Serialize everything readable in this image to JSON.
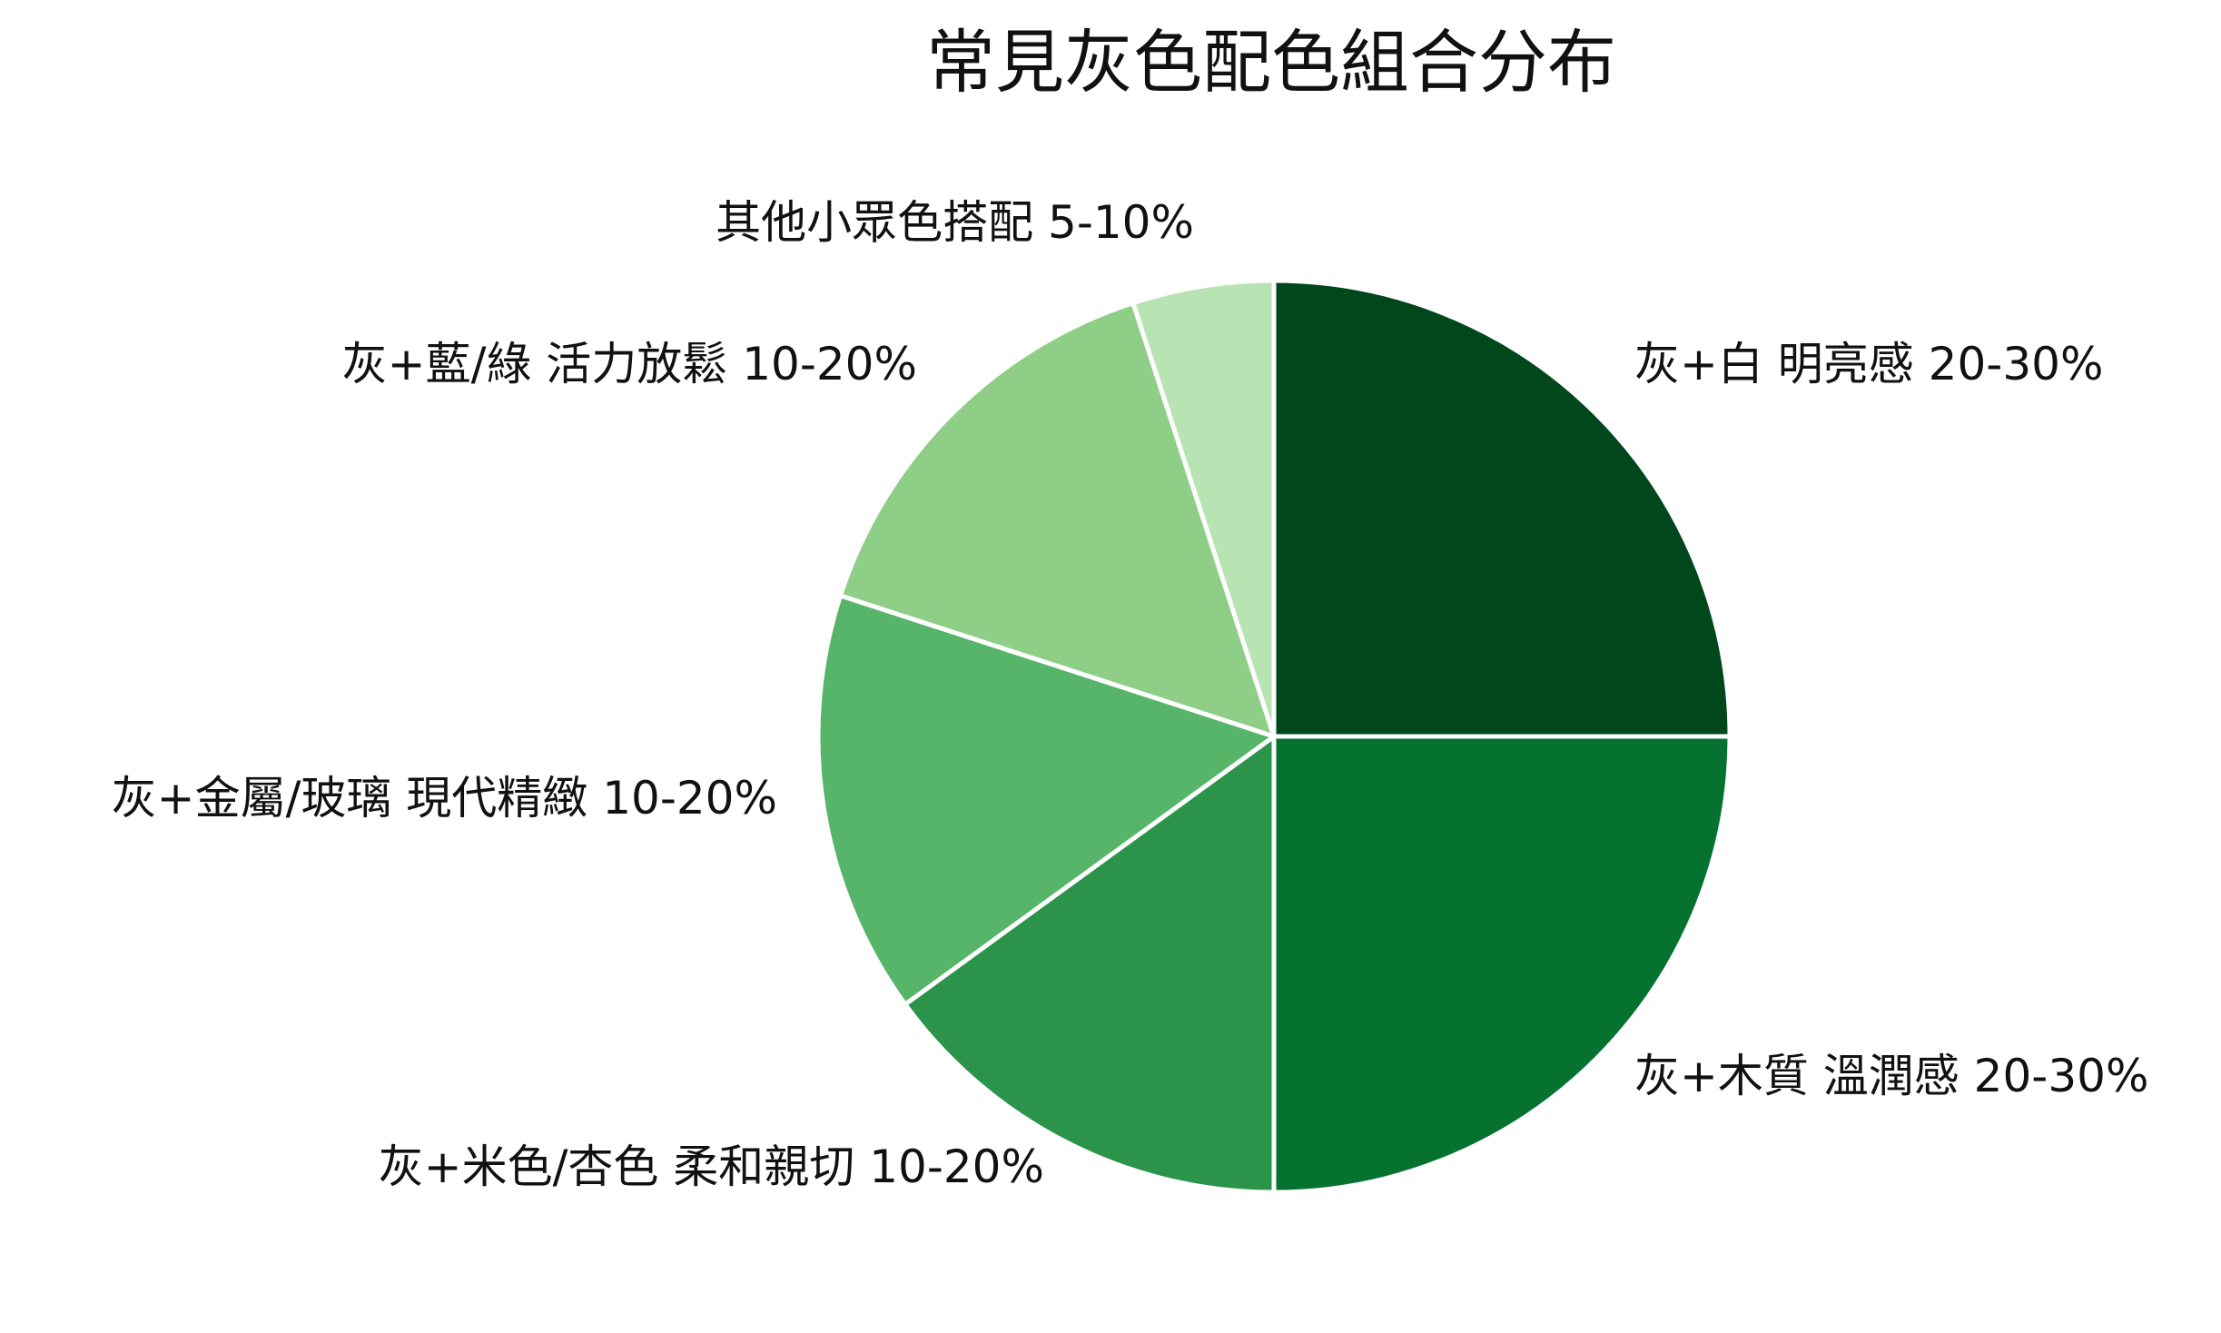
{
  "chart_data": {
    "type": "pie",
    "title": "常見灰色配色組合分布",
    "start": "top, clockwise",
    "slices": [
      {
        "label": "灰+白  明亮感 20-30%",
        "value": 25,
        "color": "#00471b"
      },
      {
        "label": "灰+木質  溫潤感 20-30%",
        "value": 25,
        "color": "#067230"
      },
      {
        "label": "灰+米色/杏色  柔和親切 10-20%",
        "value": 15,
        "color": "#2c934b"
      },
      {
        "label": "灰+金屬/玻璃  現代精緻 10-20%",
        "value": 15,
        "color": "#56b569"
      },
      {
        "label": "灰+藍/綠  活力放鬆 10-20%",
        "value": 15,
        "color": "#8ece87"
      },
      {
        "label": "其他小眾色搭配 5-10%",
        "value": 5,
        "color": "#b8e3b2"
      }
    ]
  }
}
